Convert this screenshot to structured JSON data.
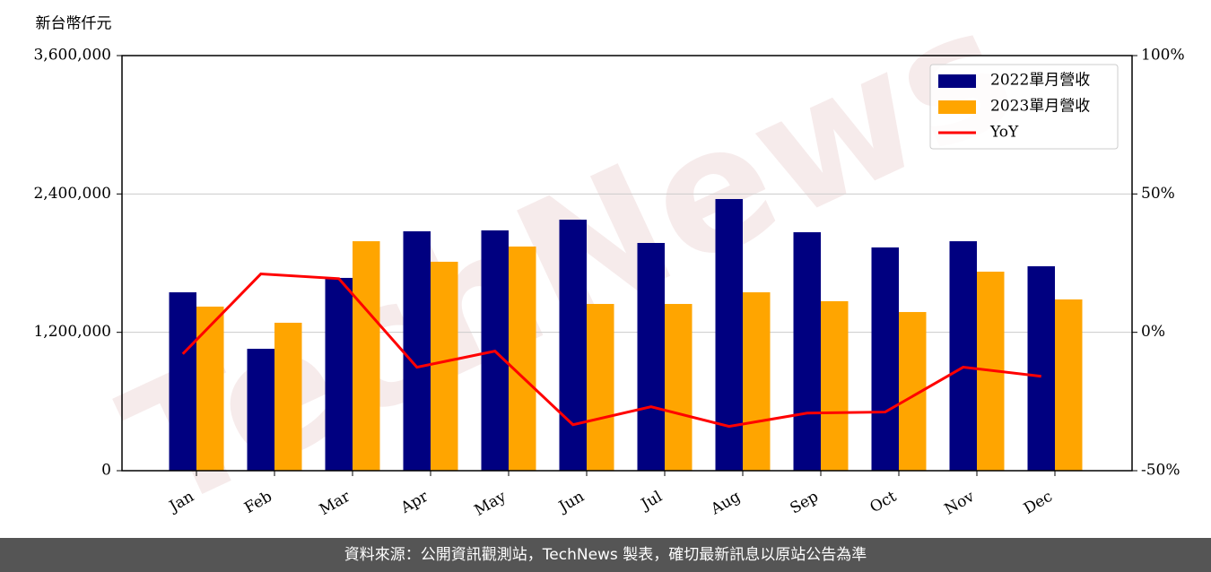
{
  "chart_data": {
    "type": "bar",
    "y_label": "新台幣仟元",
    "categories": [
      "Jan",
      "Feb",
      "Mar",
      "Apr",
      "May",
      "Jun",
      "Jul",
      "Aug",
      "Sep",
      "Oct",
      "Nov",
      "Dec"
    ],
    "series": [
      {
        "name": "2022單月營收",
        "color": "#000080",
        "values": [
          1547000,
          1057000,
          1672000,
          2076000,
          2084000,
          2177000,
          1975000,
          2356000,
          2068000,
          1936000,
          1990000,
          1773000
        ]
      },
      {
        "name": "2023單月營收",
        "color": "#ffa500",
        "values": [
          1423000,
          1283000,
          1990000,
          1812000,
          1944000,
          1446000,
          1446000,
          1547000,
          1470000,
          1376000,
          1726000,
          1485000
        ]
      },
      {
        "name": "YoY",
        "type": "line",
        "axis": "y2",
        "color": "#ff0000",
        "values": [
          -7.8,
          21.1,
          19.4,
          -12.6,
          -6.8,
          -33.4,
          -26.9,
          -34.0,
          -29.2,
          -28.8,
          -12.6,
          -15.9
        ]
      }
    ],
    "ylim": [
      0,
      3600000
    ],
    "yticks": [
      0,
      {
        "value": 1200000,
        "label": "1,200,000"
      },
      {
        "value": 2400000,
        "label": "2,400,000"
      },
      {
        "value": 3600000,
        "label": "3,600,000"
      }
    ],
    "y2lim": [
      -50,
      100
    ],
    "y2ticks": [
      {
        "value": -50,
        "label": "-50%"
      },
      {
        "value": 0,
        "label": "0%"
      },
      {
        "value": 50,
        "label": "50%"
      },
      {
        "value": 100,
        "label": "100%"
      }
    ],
    "grid": true,
    "legend": "upper right",
    "watermark": "TechNews",
    "footer": "資料來源：公開資訊觀測站，TechNews 製表，確切最新訊息以原站公告為準"
  }
}
